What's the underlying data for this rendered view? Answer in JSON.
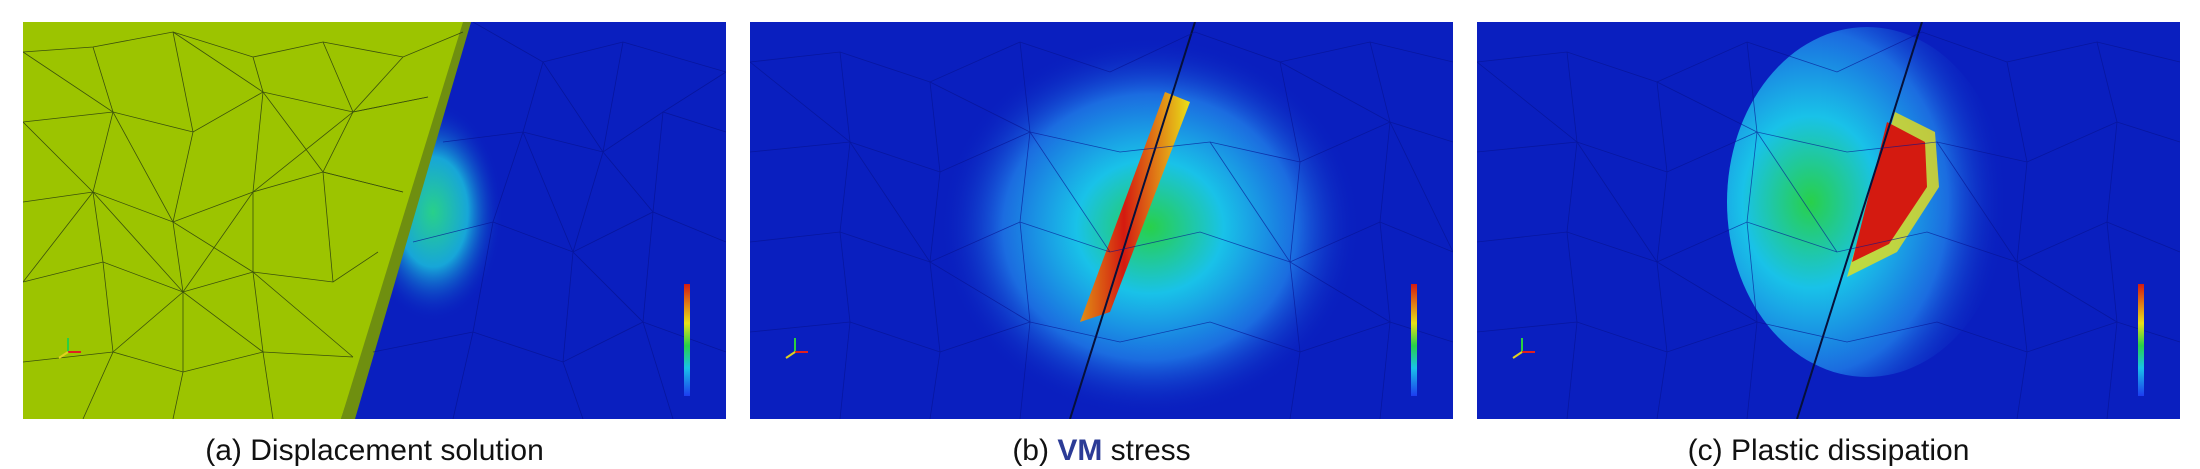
{
  "figure": {
    "panels": [
      {
        "id": "a",
        "caption_prefix": "(a)",
        "caption_text": "Displacement solution"
      },
      {
        "id": "b",
        "caption_prefix": "(b)",
        "caption_highlight": "VM",
        "caption_suffix": "stress"
      },
      {
        "id": "c",
        "caption_prefix": "(c)",
        "caption_text": "Plastic dissipation"
      }
    ]
  },
  "colors": {
    "background_blue": "#0a1fbf",
    "displaced_region": "#9cc400",
    "highlight_text": "#2b3b96",
    "colorbar_gradient": [
      "#1d3cf0",
      "#19c2e8",
      "#28d04a",
      "#e8e018",
      "#e07e16",
      "#d41a10"
    ]
  },
  "icons": [
    "coordinate-axes-icon",
    "colorbar-legend"
  ]
}
